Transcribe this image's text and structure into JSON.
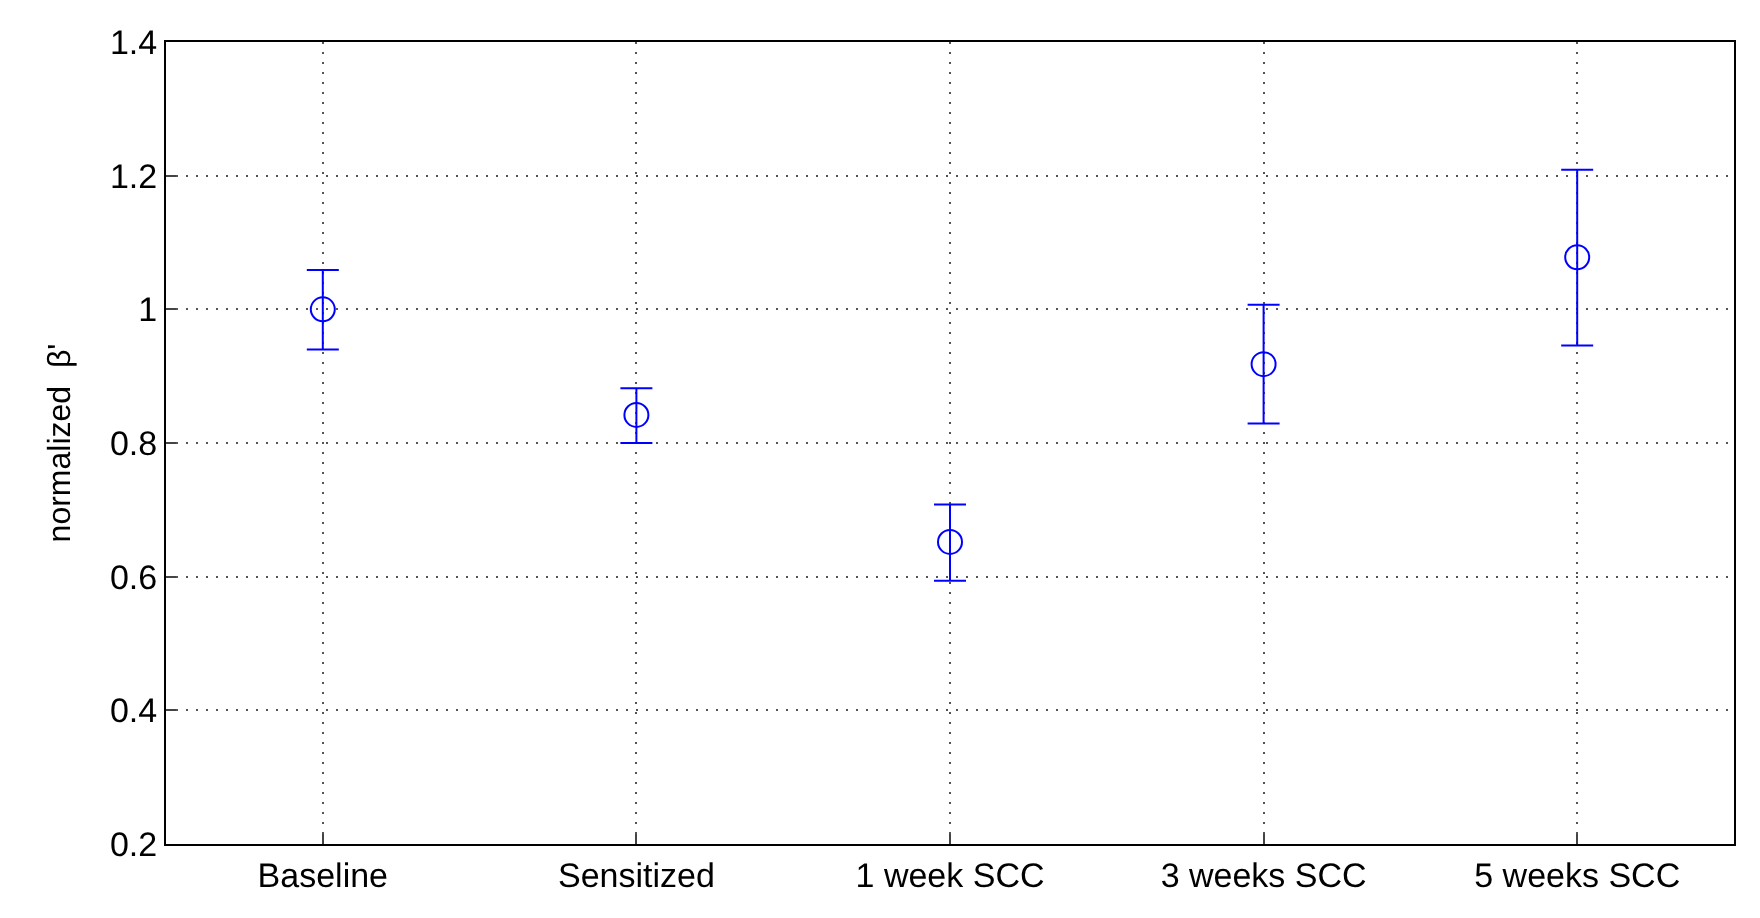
{
  "chart_data": {
    "type": "scatter",
    "ylabel": "normalized  β'",
    "categories": [
      "Baseline",
      "Sensitized",
      "1 week SCC",
      "3 weeks SCC",
      "5 weeks SCC"
    ],
    "series": [
      {
        "color": "#0000ff",
        "values": [
          1.0,
          0.842,
          0.652,
          0.918,
          1.078
        ],
        "errors": [
          [
            0.94,
            1.059
          ],
          [
            0.8,
            0.882
          ],
          [
            0.594,
            0.708
          ],
          [
            0.829,
            1.007
          ],
          [
            0.946,
            1.209
          ]
        ]
      }
    ],
    "ylim": [
      0.2,
      1.4
    ],
    "yticks": [
      {
        "value": 0.2,
        "label": "0.2"
      },
      {
        "value": 0.4,
        "label": "0.4"
      },
      {
        "value": 0.6,
        "label": "0.6"
      },
      {
        "value": 0.8,
        "label": "0.8"
      },
      {
        "value": 1.0,
        "label": "1"
      },
      {
        "value": 1.2,
        "label": "1.2"
      },
      {
        "value": 1.4,
        "label": "1.4"
      }
    ],
    "grid": true,
    "marker": "circle"
  }
}
